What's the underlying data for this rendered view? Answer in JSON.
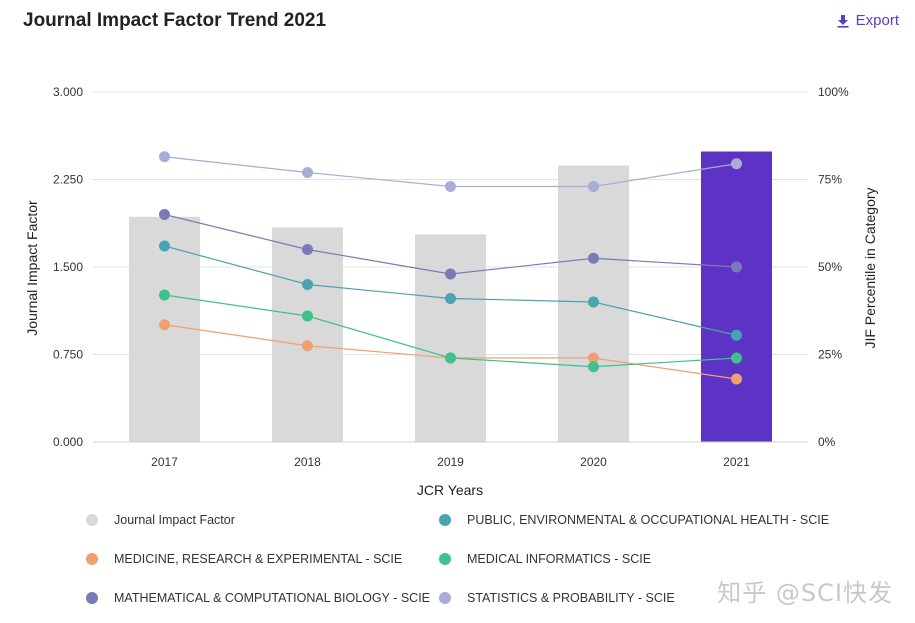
{
  "header": {
    "title": "Journal Impact Factor Trend 2021",
    "export_label": "Export",
    "export_icon": "download-icon"
  },
  "watermark": "知乎 @SCI快发",
  "colors": {
    "bar_default": "#d9d9d9",
    "bar_highlight": "#5c33c4",
    "jif": "#d9d9d9",
    "public_health": "#4aa3b0",
    "medicine": "#f0a070",
    "medical_informatics": "#40c08a",
    "math_bio": "#7a7ab8",
    "statistics": "#a9acd6"
  },
  "chart_data": {
    "type": "bar",
    "title": "Journal Impact Factor Trend 2021",
    "xlabel": "JCR Years",
    "ylabel": "Journal Impact Factor",
    "y2label": "JIF Percentile in Category",
    "categories": [
      "2017",
      "2018",
      "2019",
      "2020",
      "2021"
    ],
    "ylim": [
      0,
      3
    ],
    "y_ticks": [
      "0.000",
      "0.750",
      "1.500",
      "2.250",
      "3.000"
    ],
    "y2lim": [
      0,
      100
    ],
    "y2_ticks": [
      "0%",
      "25%",
      "50%",
      "75%",
      "100%"
    ],
    "bars": {
      "name": "Journal Impact Factor",
      "values": [
        1.93,
        1.84,
        1.78,
        2.37,
        2.49
      ],
      "highlight_index": 4
    },
    "series": [
      {
        "name": "PUBLIC, ENVIRONMENTAL & OCCUPATIONAL HEALTH - SCIE",
        "color_key": "public_health",
        "values": [
          56,
          45,
          41,
          40,
          30.5
        ]
      },
      {
        "name": "MEDICINE, RESEARCH & EXPERIMENTAL - SCIE",
        "color_key": "medicine",
        "values": [
          33.5,
          27.5,
          24,
          24,
          18
        ]
      },
      {
        "name": "MEDICAL INFORMATICS - SCIE",
        "color_key": "medical_informatics",
        "values": [
          42,
          36,
          24,
          21.5,
          24
        ]
      },
      {
        "name": "MATHEMATICAL & COMPUTATIONAL BIOLOGY - SCIE",
        "color_key": "math_bio",
        "values": [
          65,
          55,
          48,
          52.5,
          50
        ]
      },
      {
        "name": "STATISTICS & PROBABILITY - SCIE",
        "color_key": "statistics",
        "values": [
          81.5,
          77,
          73,
          73,
          79.5
        ]
      }
    ],
    "grid": true,
    "legend_position": "bottom"
  },
  "legend": [
    {
      "label": "Journal Impact Factor",
      "color_key": "jif"
    },
    {
      "label": "PUBLIC, ENVIRONMENTAL & OCCUPATIONAL HEALTH - SCIE",
      "color_key": "public_health"
    },
    {
      "label": "MEDICINE, RESEARCH & EXPERIMENTAL - SCIE",
      "color_key": "medicine"
    },
    {
      "label": "MEDICAL INFORMATICS - SCIE",
      "color_key": "medical_informatics"
    },
    {
      "label": "MATHEMATICAL & COMPUTATIONAL BIOLOGY - SCIE",
      "color_key": "math_bio"
    },
    {
      "label": "STATISTICS & PROBABILITY - SCIE",
      "color_key": "statistics"
    }
  ]
}
